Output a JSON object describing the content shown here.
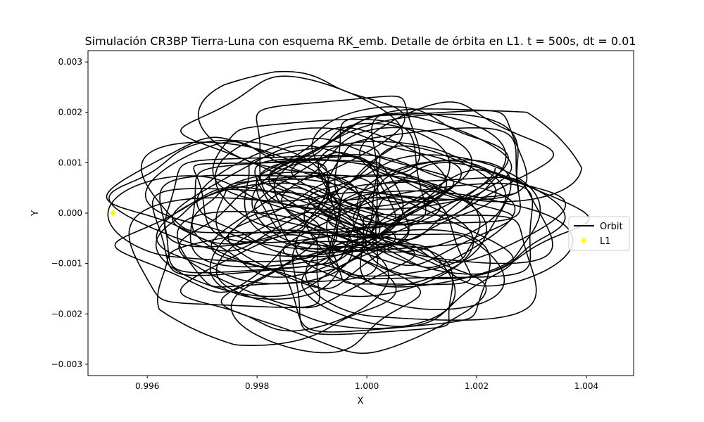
{
  "chart_data": {
    "type": "line",
    "title": "Simulación CR3BP Tierra-Luna con esquema RK_emb. Detalle de órbita en L1. t = 500s, dt = 0.01",
    "xlabel": "X",
    "ylabel": "Y",
    "xlim": [
      0.99492,
      1.00486
    ],
    "ylim": [
      -0.003225,
      0.003225
    ],
    "x_ticks": [
      0.996,
      0.998,
      1.0,
      1.002,
      1.004
    ],
    "x_tick_labels": [
      "0.996",
      "0.998",
      "1.000",
      "1.002",
      "1.004"
    ],
    "y_ticks": [
      -0.003,
      -0.002,
      -0.001,
      0.0,
      0.001,
      0.002,
      0.003
    ],
    "y_tick_labels": [
      "−0.003",
      "−0.002",
      "−0.001",
      "0.000",
      "0.001",
      "0.002",
      "0.003"
    ],
    "grid": false,
    "legend_position": "center-right",
    "series": [
      {
        "name": "Orbit",
        "kind": "line",
        "color": "#000000",
        "center": [
          0.99963,
          0.0
        ],
        "x_extent": [
          0.99535,
          1.00435
        ],
        "y_extent": [
          -0.00293,
          0.00293
        ]
      },
      {
        "name": "L1",
        "kind": "marker",
        "color": "#ffff00",
        "x": [
          0.99537
        ],
        "y": [
          0.0
        ]
      }
    ]
  }
}
